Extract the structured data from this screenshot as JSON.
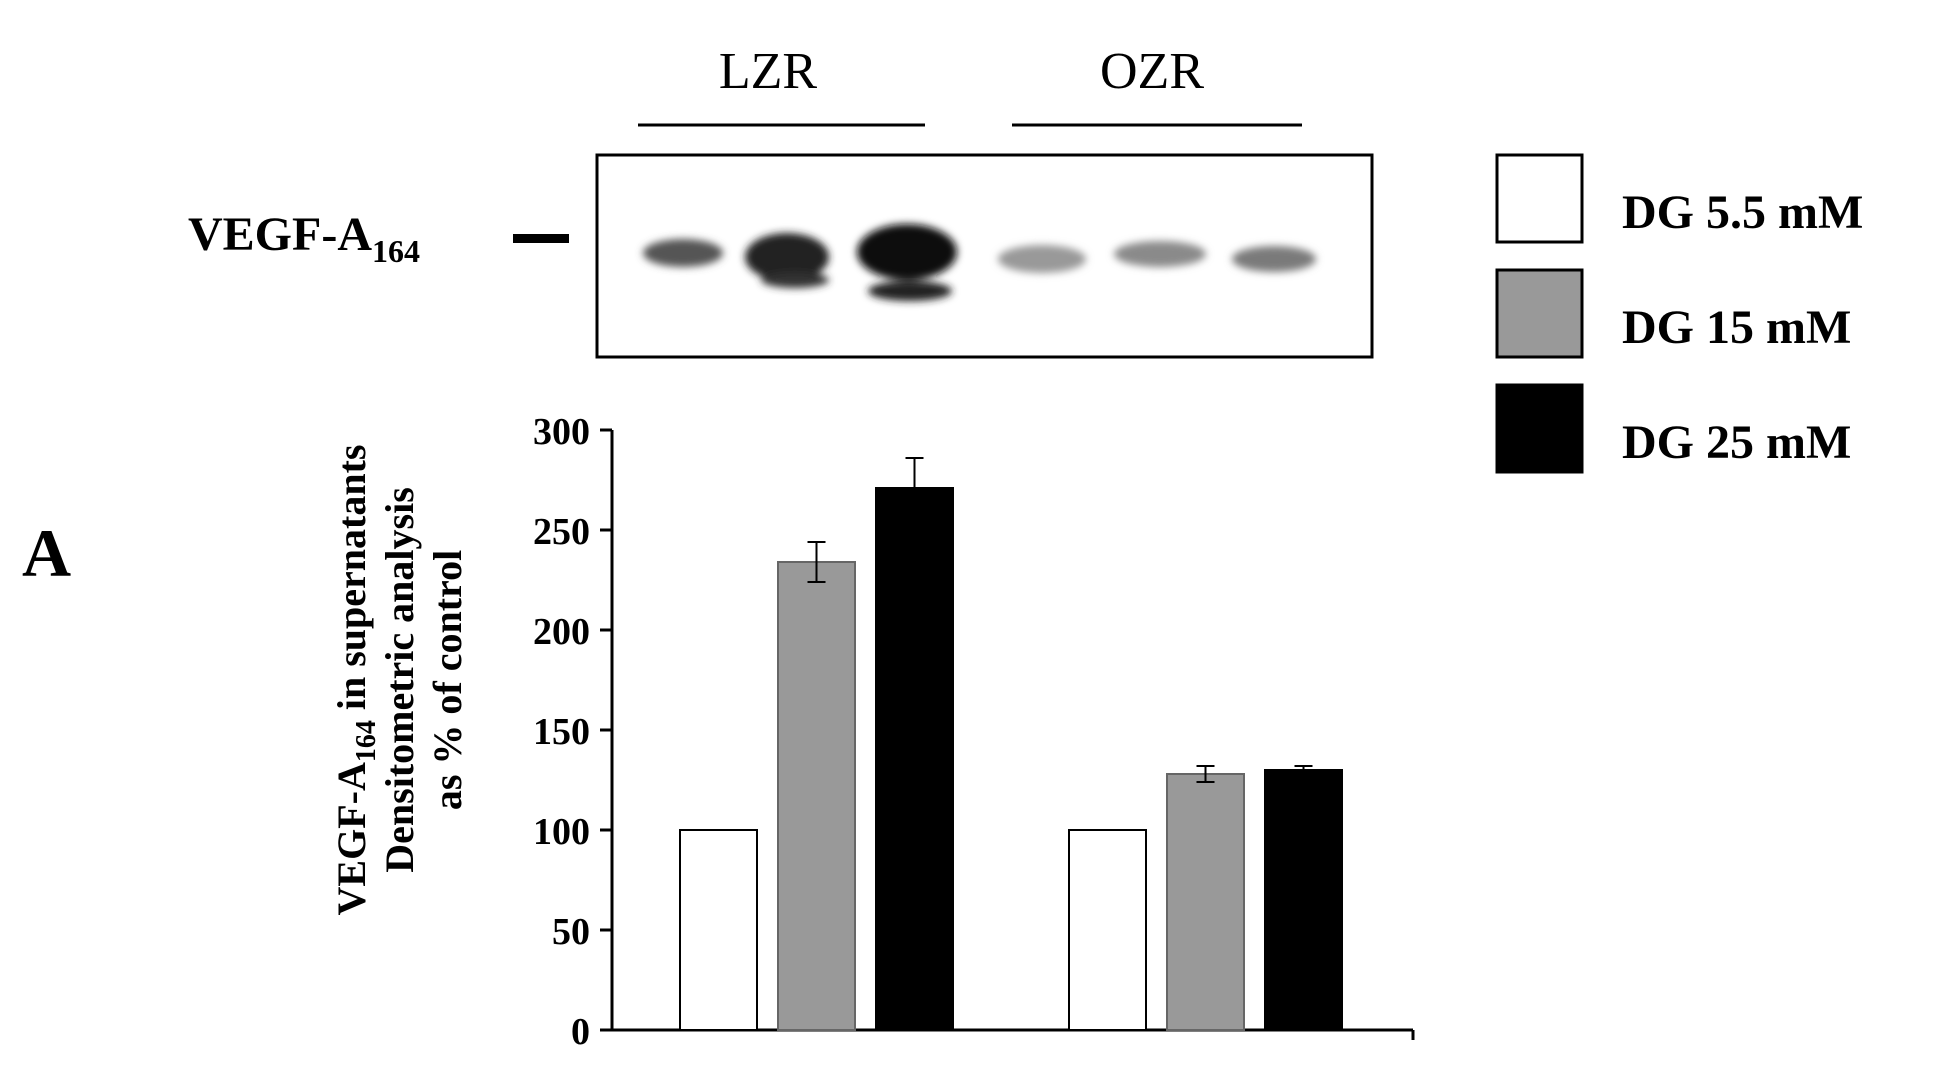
{
  "panel_label": "A",
  "blot": {
    "band_label_main": "VEGF-A",
    "band_label_sub": "164",
    "group_labels": [
      "LZR",
      "OZR"
    ]
  },
  "chart_data": {
    "type": "bar",
    "categories": [
      "",
      ""
    ],
    "series": [
      {
        "name": "DG 5.5 mM",
        "values": [
          100,
          100
        ],
        "errors": [
          0,
          0
        ],
        "color": "#ffffff"
      },
      {
        "name": "DG 15 mM",
        "values": [
          234,
          128
        ],
        "errors": [
          10,
          4
        ],
        "color": "#999999"
      },
      {
        "name": "DG 25 mM",
        "values": [
          271,
          130
        ],
        "errors": [
          15,
          2
        ],
        "color": "#000000"
      }
    ],
    "ylabel_lines": [
      {
        "main": "VEGF-A",
        "sub": "164",
        "rest": " in supernatants"
      },
      {
        "main": "Densitometric analysis"
      },
      {
        "main": "as % of control"
      }
    ],
    "ylim": [
      0,
      300
    ],
    "yticks": [
      "0",
      "50",
      "100",
      "150",
      "200",
      "250",
      "300"
    ],
    "legend_position": "top-right",
    "grid": false
  }
}
